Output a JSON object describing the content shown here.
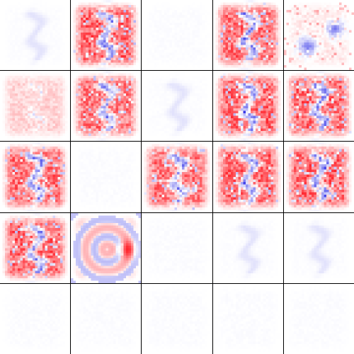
{
  "colors": {
    "positive": "#e8262e",
    "negative": "#3a3ae6",
    "neutral": "#ffffff",
    "faint": "#f4f5ff",
    "grid_line": "#000000"
  },
  "grid": {
    "rows": 5,
    "cols": 5,
    "cells": [
      {
        "pattern": "faint-digit",
        "intensity": 0.06
      },
      {
        "pattern": "strong-red",
        "intensity": 1.0
      },
      {
        "pattern": "faint",
        "intensity": 0.03
      },
      {
        "pattern": "strong-red",
        "intensity": 0.95
      },
      {
        "pattern": "mixed-blue-blobs",
        "intensity": 0.55
      },
      {
        "pattern": "light-red",
        "intensity": 0.45
      },
      {
        "pattern": "strong-red",
        "intensity": 0.9
      },
      {
        "pattern": "faint-digit",
        "intensity": 0.05
      },
      {
        "pattern": "strong-red",
        "intensity": 1.0
      },
      {
        "pattern": "strong-red",
        "intensity": 1.0
      },
      {
        "pattern": "strong-red",
        "intensity": 0.95
      },
      {
        "pattern": "faint",
        "intensity": 0.02
      },
      {
        "pattern": "strong-red",
        "intensity": 0.9
      },
      {
        "pattern": "strong-red",
        "intensity": 1.0
      },
      {
        "pattern": "strong-red",
        "intensity": 1.0
      },
      {
        "pattern": "strong-red",
        "intensity": 1.0
      },
      {
        "pattern": "swirl-red-blue",
        "intensity": 0.6
      },
      {
        "pattern": "faint",
        "intensity": 0.03
      },
      {
        "pattern": "faint-digit",
        "intensity": 0.05
      },
      {
        "pattern": "faint-digit",
        "intensity": 0.04
      },
      {
        "pattern": "faint",
        "intensity": 0.03
      },
      {
        "pattern": "faint",
        "intensity": 0.03
      },
      {
        "pattern": "faint",
        "intensity": 0.03
      },
      {
        "pattern": "faint",
        "intensity": 0.03
      },
      {
        "pattern": "faint",
        "intensity": 0.03
      }
    ]
  }
}
